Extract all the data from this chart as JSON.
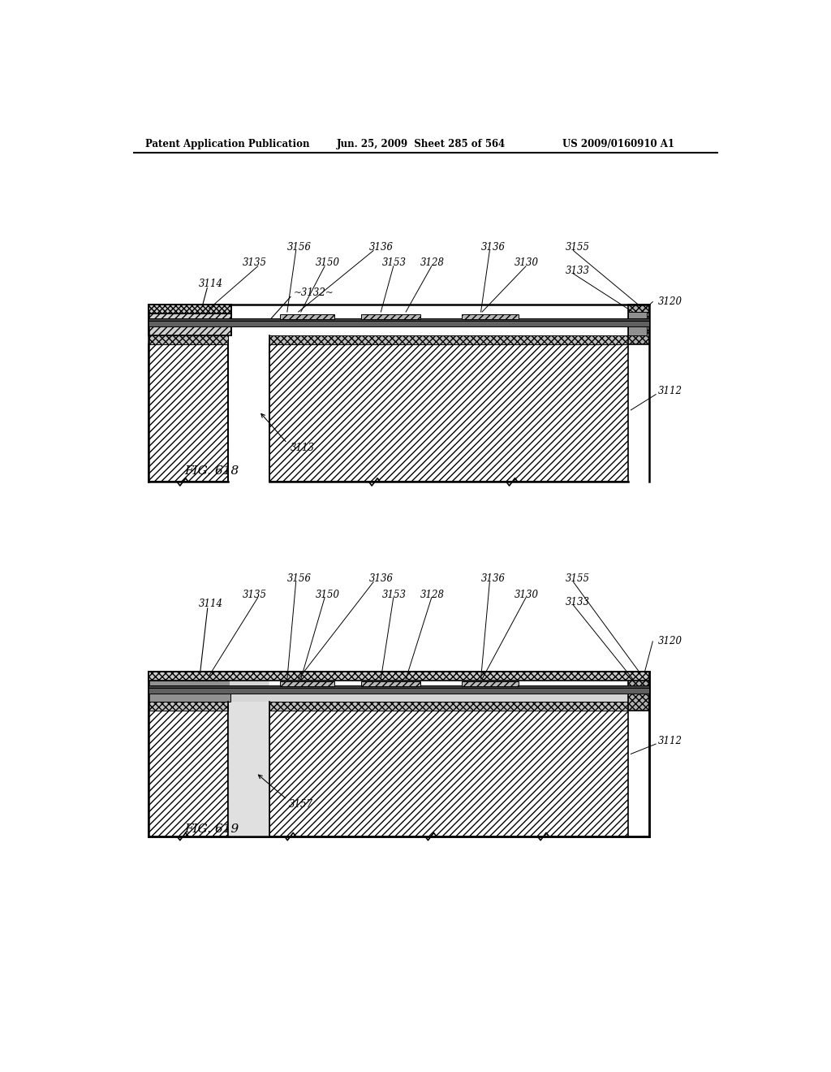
{
  "header_left": "Patent Application Publication",
  "header_mid": "Jun. 25, 2009  Sheet 285 of 564",
  "header_right": "US 2009/0160910 A1",
  "fig1_label": "FIG. 618",
  "fig2_label": "FIG. 619",
  "background_color": "#ffffff"
}
